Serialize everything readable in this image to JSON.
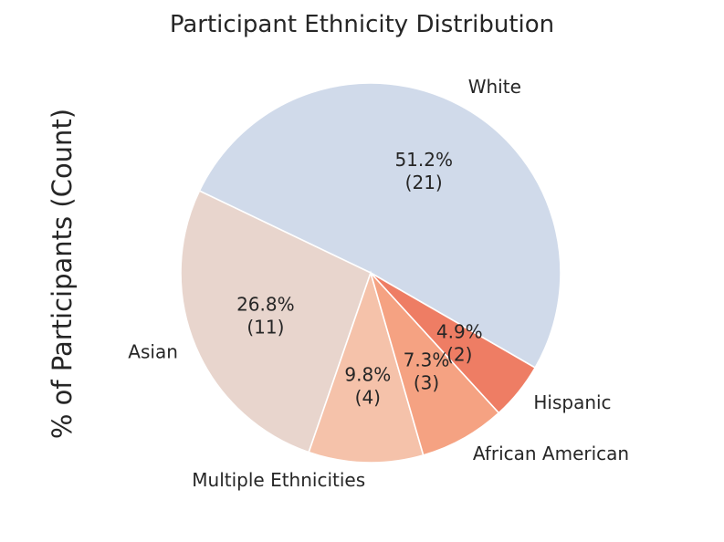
{
  "chart_data": {
    "type": "pie",
    "title": "Participant Ethnicity Distribution",
    "ylabel": "% of Participants (Count)",
    "start_angle_deg": 330,
    "direction": "counterclockwise",
    "slices": [
      {
        "label": "White",
        "percent_label": "51.2%",
        "count_label": "(21)",
        "value": 21,
        "color": "#d0daea"
      },
      {
        "label": "Asian",
        "percent_label": "26.8%",
        "count_label": "(11)",
        "value": 11,
        "color": "#e8d5cd"
      },
      {
        "label": "Multiple Ethnicities",
        "percent_label": "9.8%",
        "count_label": "(4)",
        "value": 4,
        "color": "#f5c2aa"
      },
      {
        "label": "African American",
        "percent_label": "7.3%",
        "count_label": "(3)",
        "value": 3,
        "color": "#f5a282"
      },
      {
        "label": "Hispanic",
        "percent_label": "4.9%",
        "count_label": "(2)",
        "value": 2,
        "color": "#ee7d64"
      }
    ]
  }
}
